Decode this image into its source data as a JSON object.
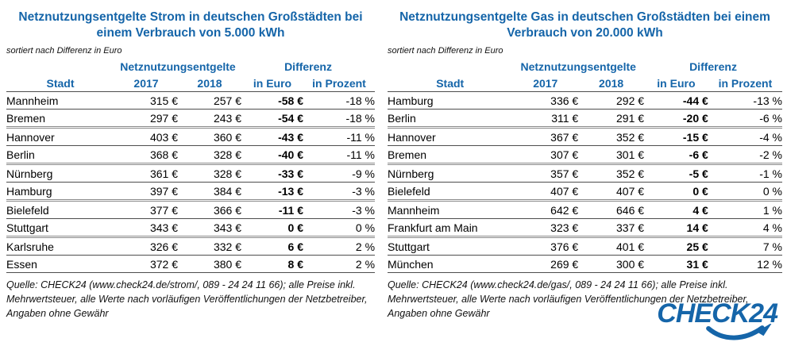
{
  "colors": {
    "accent_blue": "#1565a9",
    "text": "#000000",
    "row_border": "#4d4d4d"
  },
  "chart_data": [
    {
      "type": "table",
      "title_lines": [
        "Netznutzungsentgelte Strom in deutschen Großstädten bei",
        "einem Verbrauch von 5.000 kWh"
      ],
      "sort_note": "sortiert nach Differenz in Euro",
      "col_groups": {
        "fees": "Netznutzungsentgelte",
        "diff": "Differenz"
      },
      "columns": [
        "Stadt",
        "2017",
        "2018",
        "in Euro",
        "in Prozent"
      ],
      "rows": [
        [
          "Mannheim",
          "315 €",
          "257 €",
          "-58 €",
          "-18 %"
        ],
        [
          "Bremen",
          "297 €",
          "243 €",
          "-54 €",
          "-18 %"
        ],
        [
          "Hannover",
          "403 €",
          "360 €",
          "-43 €",
          "-11 %"
        ],
        [
          "Berlin",
          "368 €",
          "328 €",
          "-40 €",
          "-11 %"
        ],
        [
          "Nürnberg",
          "361 €",
          "328 €",
          "-33 €",
          "-9 %"
        ],
        [
          "Hamburg",
          "397 €",
          "384 €",
          "-13 €",
          "-3 %"
        ],
        [
          "Bielefeld",
          "377 €",
          "366 €",
          "-11 €",
          "-3 %"
        ],
        [
          "Stuttgart",
          "343 €",
          "343 €",
          "0 €",
          "0 %"
        ],
        [
          "Karlsruhe",
          "326 €",
          "332 €",
          "6 €",
          "2 %"
        ],
        [
          "Essen",
          "372 €",
          "380 €",
          "8 €",
          "2 %"
        ]
      ],
      "source": "Quelle: CHECK24 (www.check24.de/strom/, 089 - 24 24 11 66); alle Preise inkl. Mehrwertsteuer, alle Werte nach vorläufigen Veröffentlichungen der Netzbetreiber, Angaben ohne Gewähr"
    },
    {
      "type": "table",
      "title_lines": [
        "Netznutzungsentgelte Gas in deutschen Großstädten bei einem",
        "Verbrauch von 20.000 kWh"
      ],
      "sort_note": "sortiert nach Differenz in Euro",
      "col_groups": {
        "fees": "Netznutzungsentgelte",
        "diff": "Differenz"
      },
      "columns": [
        "Stadt",
        "2017",
        "2018",
        "in Euro",
        "in Prozent"
      ],
      "rows": [
        [
          "Hamburg",
          "336 €",
          "292 €",
          "-44 €",
          "-13 %"
        ],
        [
          "Berlin",
          "311 €",
          "291 €",
          "-20 €",
          "-6 %"
        ],
        [
          "Hannover",
          "367 €",
          "352 €",
          "-15 €",
          "-4 %"
        ],
        [
          "Bremen",
          "307 €",
          "301 €",
          "-6 €",
          "-2 %"
        ],
        [
          "Nürnberg",
          "357 €",
          "352 €",
          "-5 €",
          "-1 %"
        ],
        [
          "Bielefeld",
          "407 €",
          "407 €",
          "0 €",
          "0 %"
        ],
        [
          "Mannheim",
          "642 €",
          "646 €",
          "4 €",
          "1 %"
        ],
        [
          "Frankfurt am Main",
          "323 €",
          "337 €",
          "14 €",
          "4 %"
        ],
        [
          "Stuttgart",
          "376 €",
          "401 €",
          "25 €",
          "7 %"
        ],
        [
          "München",
          "269 €",
          "300 €",
          "31 €",
          "12 %"
        ]
      ],
      "source": "Quelle: CHECK24 (www.check24.de/gas/, 089 - 24 24 11 66); alle Preise inkl. Mehrwertsteuer, alle Werte nach vorläufigen Veröffentlichungen der Netzbetreiber, Angaben ohne Gewähr"
    }
  ],
  "logo": {
    "text": "CHECK24"
  }
}
